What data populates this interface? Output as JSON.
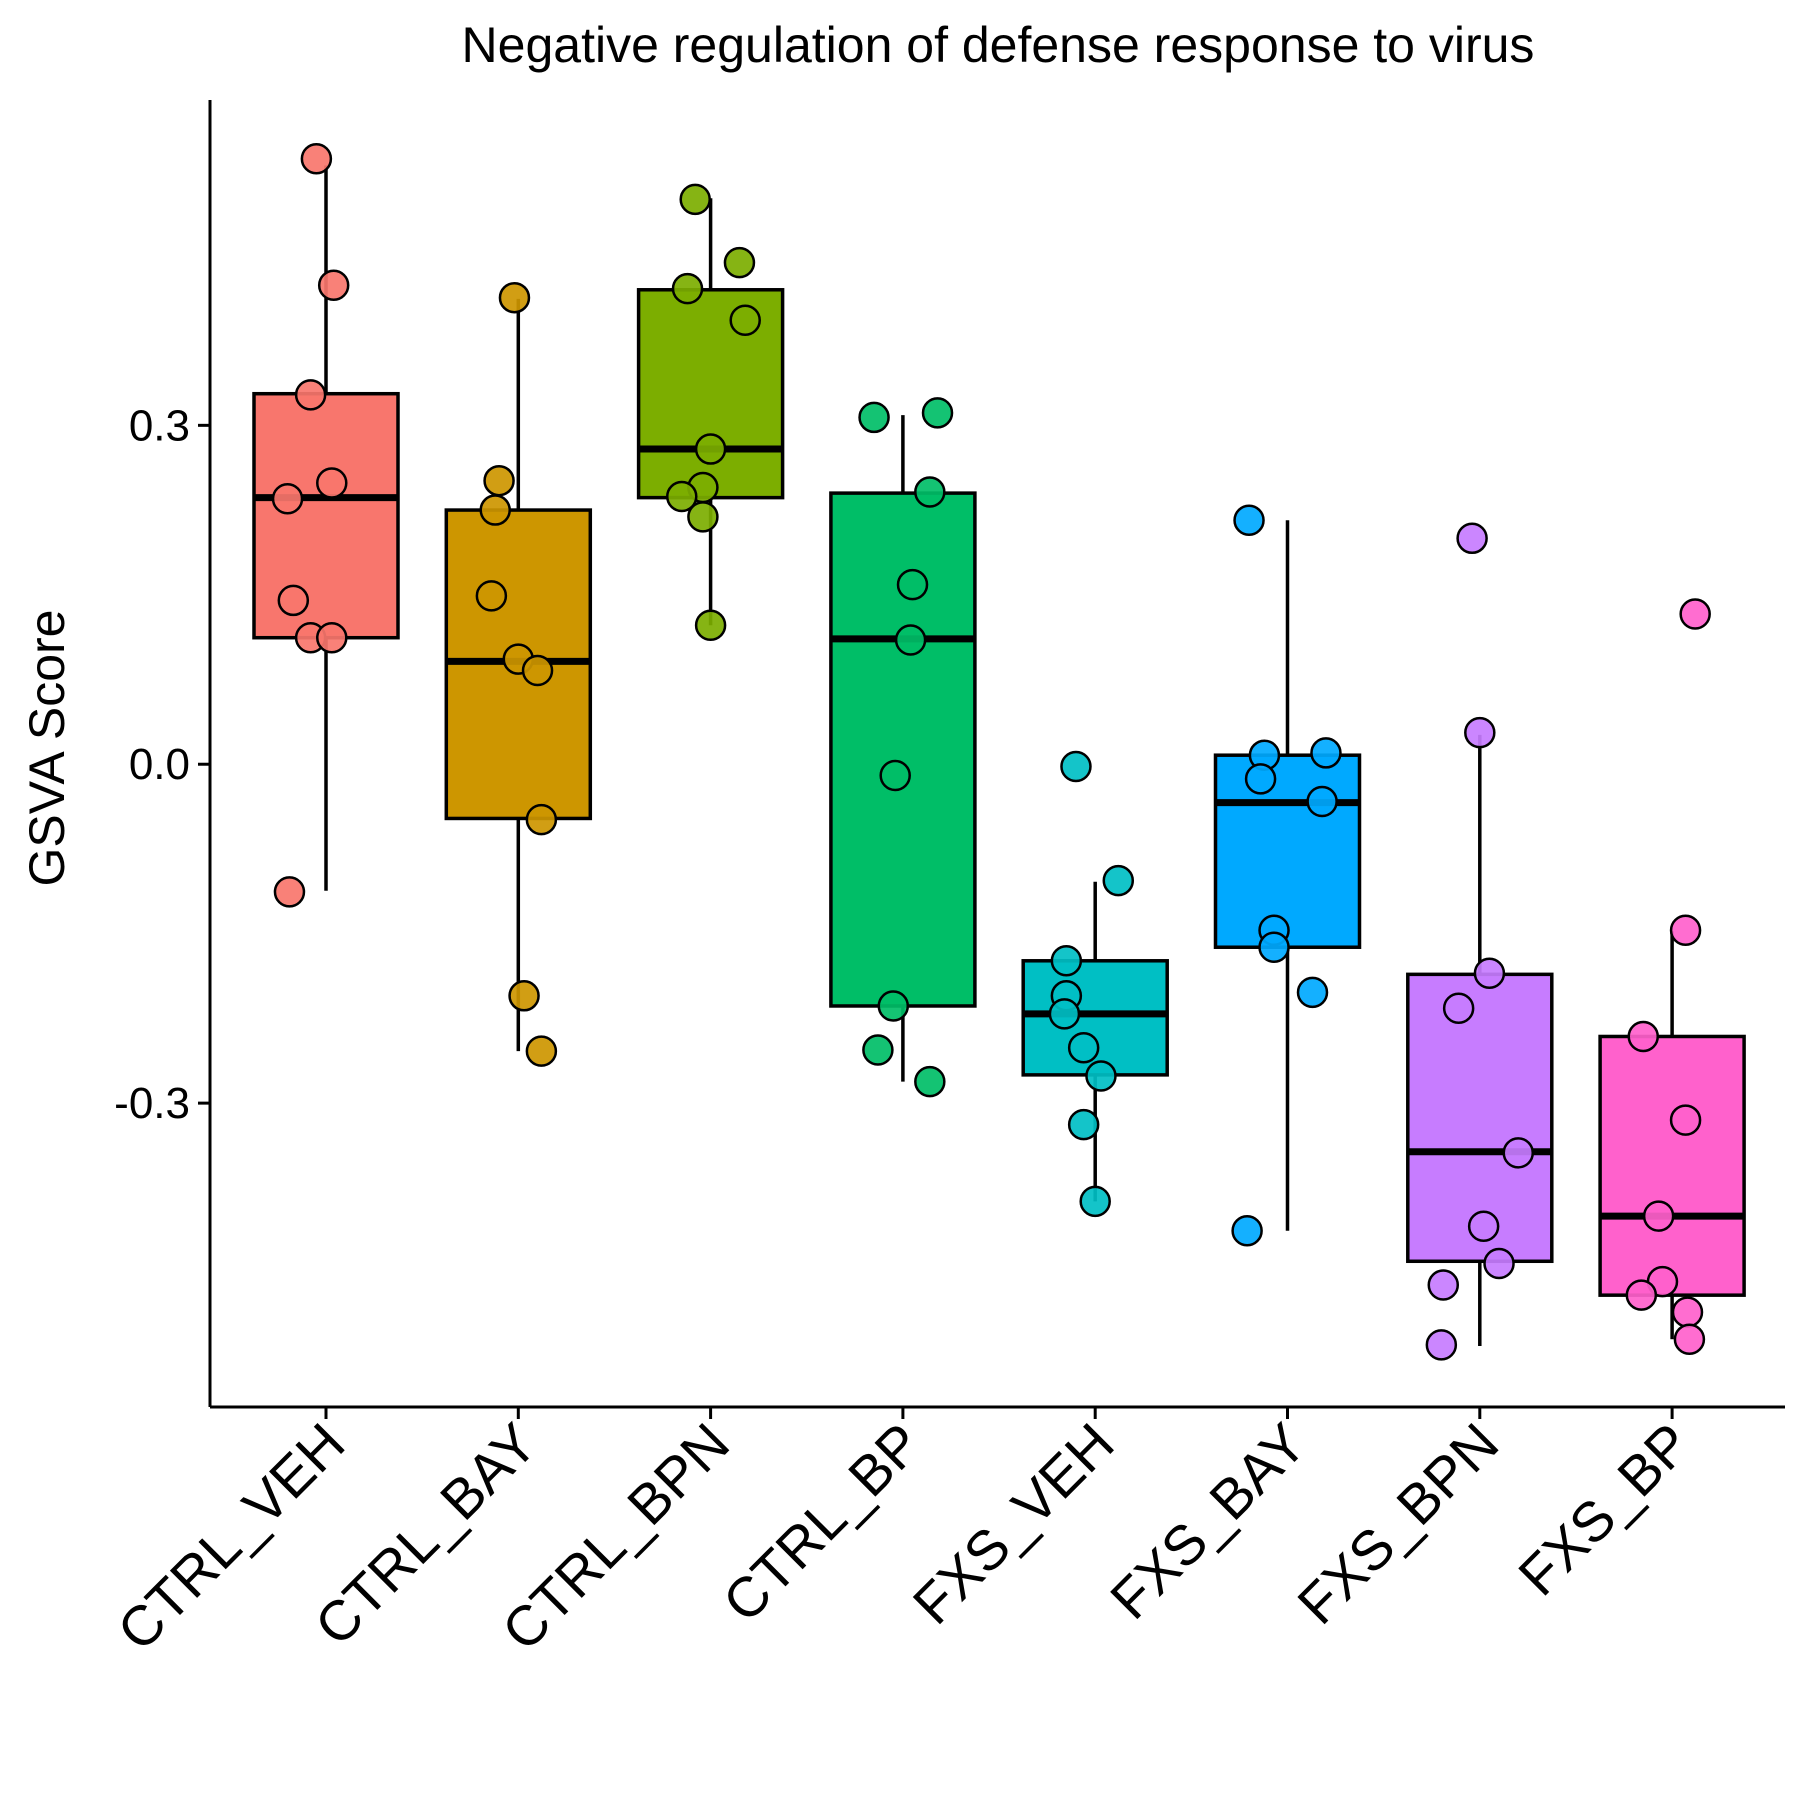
{
  "chart_data": {
    "type": "boxplot",
    "title": "Negative regulation of defense response to virus",
    "xlabel": "",
    "ylabel": "GSVA Score",
    "ylim": [
      -0.569,
      0.588
    ],
    "yticks": [
      -0.3,
      0.0,
      0.3
    ],
    "ytick_labels": [
      "-0.3",
      "0.0",
      "0.3"
    ],
    "grid": false,
    "legend": "none",
    "categories": [
      "CTRL_VEH",
      "CTRL_BAY",
      "CTRL_BPN",
      "CTRL_BP",
      "FXS_VEH",
      "FXS_BAY",
      "FXS_BPN",
      "FXS_BP"
    ],
    "colors": [
      "#F8766D",
      "#CD9600",
      "#7CAE00",
      "#00BE67",
      "#00BFC4",
      "#00A9FF",
      "#C77CFF",
      "#FF61CC"
    ],
    "boxes": [
      {
        "category": "CTRL_VEH",
        "whisker_low": -0.112,
        "q1": 0.112,
        "median": 0.236,
        "q3": 0.328,
        "whisker_high": 0.53
      },
      {
        "category": "CTRL_BAY",
        "whisker_low": -0.254,
        "q1": -0.048,
        "median": 0.091,
        "q3": 0.225,
        "whisker_high": 0.412
      },
      {
        "category": "CTRL_BPN",
        "whisker_low": 0.123,
        "q1": 0.236,
        "median": 0.279,
        "q3": 0.42,
        "whisker_high": 0.501
      },
      {
        "category": "CTRL_BP",
        "whisker_low": -0.281,
        "q1": -0.214,
        "median": 0.111,
        "q3": 0.24,
        "whisker_high": 0.309
      },
      {
        "category": "FXS_VEH",
        "whisker_low": -0.387,
        "q1": -0.275,
        "median": -0.221,
        "q3": -0.174,
        "whisker_high": -0.104
      },
      {
        "category": "FXS_BAY",
        "whisker_low": -0.413,
        "q1": -0.162,
        "median": -0.034,
        "q3": 0.008,
        "whisker_high": 0.216
      },
      {
        "category": "FXS_BPN",
        "whisker_low": -0.515,
        "q1": -0.44,
        "median": -0.343,
        "q3": -0.186,
        "whisker_high": 0.026
      },
      {
        "category": "FXS_BP",
        "whisker_low": -0.509,
        "q1": -0.47,
        "median": -0.4,
        "q3": -0.241,
        "whisker_high": -0.148
      }
    ],
    "points": [
      {
        "category": "CTRL_VEH",
        "values": [
          0.536,
          0.424,
          0.327,
          0.249,
          0.235,
          0.145,
          0.112,
          0.112,
          -0.113
        ],
        "jitter": [
          -0.05,
          0.04,
          -0.08,
          0.03,
          -0.2,
          -0.17,
          -0.08,
          0.03,
          -0.19
        ]
      },
      {
        "category": "CTRL_BAY",
        "values": [
          0.413,
          0.251,
          0.225,
          0.149,
          0.093,
          0.083,
          -0.049,
          -0.205,
          -0.254
        ],
        "jitter": [
          -0.02,
          -0.1,
          -0.12,
          -0.14,
          0.0,
          0.1,
          0.12,
          0.03,
          0.12
        ]
      },
      {
        "category": "CTRL_BPN",
        "values": [
          0.5,
          0.444,
          0.421,
          0.393,
          0.279,
          0.245,
          0.237,
          0.219,
          0.123
        ],
        "jitter": [
          -0.08,
          0.15,
          -0.12,
          0.18,
          0.0,
          -0.04,
          -0.15,
          -0.04,
          0.0
        ]
      },
      {
        "category": "CTRL_BP",
        "values": [
          0.311,
          0.307,
          0.241,
          0.159,
          0.11,
          -0.01,
          -0.214,
          -0.253,
          -0.281
        ],
        "jitter": [
          0.18,
          -0.15,
          0.14,
          0.05,
          0.04,
          -0.04,
          -0.05,
          -0.13,
          0.14
        ]
      },
      {
        "category": "FXS_VEH",
        "values": [
          -0.002,
          -0.103,
          -0.174,
          -0.205,
          -0.221,
          -0.251,
          -0.276,
          -0.319,
          -0.387
        ],
        "jitter": [
          -0.1,
          0.12,
          -0.15,
          -0.15,
          -0.16,
          -0.06,
          0.03,
          -0.06,
          0.0
        ]
      },
      {
        "category": "FXS_BAY",
        "values": [
          0.216,
          0.01,
          0.008,
          -0.013,
          -0.033,
          -0.147,
          -0.162,
          -0.202,
          -0.413
        ],
        "jitter": [
          -0.2,
          0.2,
          -0.12,
          -0.14,
          0.18,
          -0.07,
          -0.07,
          0.13,
          -0.21
        ]
      },
      {
        "category": "FXS_BPN",
        "values": [
          0.2,
          0.028,
          -0.185,
          -0.216,
          -0.344,
          -0.409,
          -0.442,
          -0.461,
          -0.514
        ],
        "jitter": [
          -0.04,
          0.0,
          0.05,
          -0.11,
          0.2,
          0.02,
          0.1,
          -0.19,
          -0.2
        ]
      },
      {
        "category": "FXS_BP",
        "values": [
          0.133,
          -0.147,
          -0.241,
          -0.315,
          -0.4,
          -0.458,
          -0.47,
          -0.485,
          -0.509
        ],
        "jitter": [
          0.12,
          0.07,
          -0.15,
          0.07,
          -0.07,
          -0.05,
          -0.16,
          0.08,
          0.09
        ]
      }
    ]
  }
}
